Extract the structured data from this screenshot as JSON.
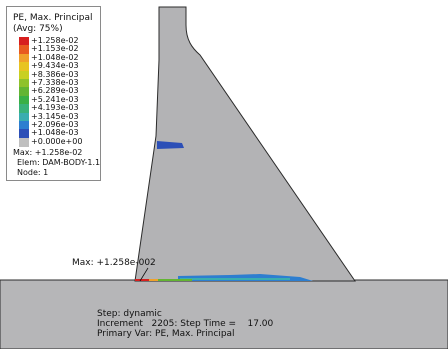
{
  "legend": {
    "title_line1": "PE, Max. Principal",
    "title_line2": "(Avg: 75%)",
    "entries": [
      {
        "label": "+1.258e-02",
        "color": "#d71f1f"
      },
      {
        "label": "+1.153e-02",
        "color": "#e85b1f"
      },
      {
        "label": "+1.048e-02",
        "color": "#f0a12a"
      },
      {
        "label": "+9.434e-03",
        "color": "#e8c421"
      },
      {
        "label": "+8.386e-03",
        "color": "#c8d021"
      },
      {
        "label": "+7.338e-03",
        "color": "#8fc22b"
      },
      {
        "label": "+6.289e-03",
        "color": "#63b533"
      },
      {
        "label": "+5.241e-03",
        "color": "#39b046"
      },
      {
        "label": "+4.193e-03",
        "color": "#38b27a"
      },
      {
        "label": "+3.145e-03",
        "color": "#39adb0"
      },
      {
        "label": "+2.096e-03",
        "color": "#2d7ed0"
      },
      {
        "label": "+1.048e-03",
        "color": "#2c4fb7"
      },
      {
        "label": "+0.000e+00",
        "color": "#bfbfbf"
      }
    ],
    "max_line": "Max: +1.258e-02",
    "elem_line": "Elem: DAM-BODY-1.1",
    "node_line": "Node: 1"
  },
  "model": {
    "dam_color": "#b3b3b5",
    "foundation_color": "#b6b6b8",
    "edge_color": "#2b2b2b"
  },
  "annotation": {
    "max_label": "Max: +1.258e-002"
  },
  "status": {
    "step": "Step: dynamic",
    "increment": "Increment   2205: Step Time =    17.00",
    "primary_var": "Primary Var: PE, Max. Principal"
  }
}
